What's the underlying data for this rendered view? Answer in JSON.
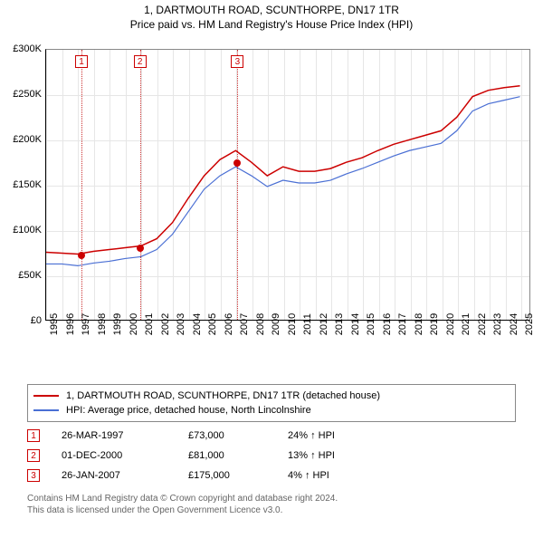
{
  "header": {
    "address": "1, DARTMOUTH ROAD, SCUNTHORPE, DN17 1TR",
    "subtitle": "Price paid vs. HM Land Registry's House Price Index (HPI)"
  },
  "chart": {
    "type": "line",
    "background_color": "#ffffff",
    "grid_color": "#e6e6e6",
    "axis_color": "#000000",
    "x": {
      "min": 1995,
      "max": 2025.6,
      "ticks": [
        1995,
        1996,
        1997,
        1998,
        1999,
        2000,
        2001,
        2002,
        2003,
        2004,
        2005,
        2006,
        2007,
        2008,
        2009,
        2010,
        2011,
        2012,
        2013,
        2014,
        2015,
        2016,
        2017,
        2018,
        2019,
        2020,
        2021,
        2022,
        2023,
        2024,
        2025
      ]
    },
    "y": {
      "min": 0,
      "max": 300000,
      "ticks": [
        0,
        50000,
        100000,
        150000,
        200000,
        250000,
        300000
      ],
      "tick_labels": [
        "£0",
        "£50K",
        "£100K",
        "£150K",
        "£200K",
        "£250K",
        "£300K"
      ]
    },
    "series": [
      {
        "id": "property",
        "label": "1, DARTMOUTH ROAD, SCUNTHORPE, DN17 1TR (detached house)",
        "color": "#cc0000",
        "line_width": 1.5,
        "points": [
          [
            1995,
            75000
          ],
          [
            1996,
            74000
          ],
          [
            1997,
            73000
          ],
          [
            1998,
            76000
          ],
          [
            1999,
            78000
          ],
          [
            2000,
            80000
          ],
          [
            2001,
            82000
          ],
          [
            2002,
            90000
          ],
          [
            2003,
            108000
          ],
          [
            2004,
            135000
          ],
          [
            2005,
            160000
          ],
          [
            2006,
            178000
          ],
          [
            2007,
            188000
          ],
          [
            2008,
            175000
          ],
          [
            2009,
            160000
          ],
          [
            2010,
            170000
          ],
          [
            2011,
            165000
          ],
          [
            2012,
            165000
          ],
          [
            2013,
            168000
          ],
          [
            2014,
            175000
          ],
          [
            2015,
            180000
          ],
          [
            2016,
            188000
          ],
          [
            2017,
            195000
          ],
          [
            2018,
            200000
          ],
          [
            2019,
            205000
          ],
          [
            2020,
            210000
          ],
          [
            2021,
            225000
          ],
          [
            2022,
            248000
          ],
          [
            2023,
            255000
          ],
          [
            2024,
            258000
          ],
          [
            2025,
            260000
          ]
        ]
      },
      {
        "id": "hpi",
        "label": "HPI: Average price, detached house, North Lincolnshire",
        "color": "#4a6fd4",
        "line_width": 1.2,
        "points": [
          [
            1995,
            62000
          ],
          [
            1996,
            62000
          ],
          [
            1997,
            60000
          ],
          [
            1998,
            63000
          ],
          [
            1999,
            65000
          ],
          [
            2000,
            68000
          ],
          [
            2001,
            70000
          ],
          [
            2002,
            78000
          ],
          [
            2003,
            95000
          ],
          [
            2004,
            120000
          ],
          [
            2005,
            145000
          ],
          [
            2006,
            160000
          ],
          [
            2007,
            170000
          ],
          [
            2008,
            160000
          ],
          [
            2009,
            148000
          ],
          [
            2010,
            155000
          ],
          [
            2011,
            152000
          ],
          [
            2012,
            152000
          ],
          [
            2013,
            155000
          ],
          [
            2014,
            162000
          ],
          [
            2015,
            168000
          ],
          [
            2016,
            175000
          ],
          [
            2017,
            182000
          ],
          [
            2018,
            188000
          ],
          [
            2019,
            192000
          ],
          [
            2020,
            196000
          ],
          [
            2021,
            210000
          ],
          [
            2022,
            232000
          ],
          [
            2023,
            240000
          ],
          [
            2024,
            244000
          ],
          [
            2025,
            248000
          ]
        ]
      }
    ],
    "sale_markers": [
      {
        "n": "1",
        "year": 1997.23,
        "price": 73000
      },
      {
        "n": "2",
        "year": 2000.92,
        "price": 81000
      },
      {
        "n": "3",
        "year": 2007.07,
        "price": 175000
      }
    ],
    "ref_line_color": "#cc3333"
  },
  "legend": {
    "items": [
      {
        "color": "#cc0000",
        "label": "1, DARTMOUTH ROAD, SCUNTHORPE, DN17 1TR (detached house)"
      },
      {
        "color": "#4a6fd4",
        "label": "HPI: Average price, detached house, North Lincolnshire"
      }
    ]
  },
  "events": [
    {
      "n": "1",
      "date": "26-MAR-1997",
      "price": "£73,000",
      "delta": "24% ↑ HPI"
    },
    {
      "n": "2",
      "date": "01-DEC-2000",
      "price": "£81,000",
      "delta": "13% ↑ HPI"
    },
    {
      "n": "3",
      "date": "26-JAN-2007",
      "price": "£175,000",
      "delta": "4% ↑ HPI"
    }
  ],
  "footer": {
    "line1": "Contains HM Land Registry data © Crown copyright and database right 2024.",
    "line2": "This data is licensed under the Open Government Licence v3.0."
  }
}
